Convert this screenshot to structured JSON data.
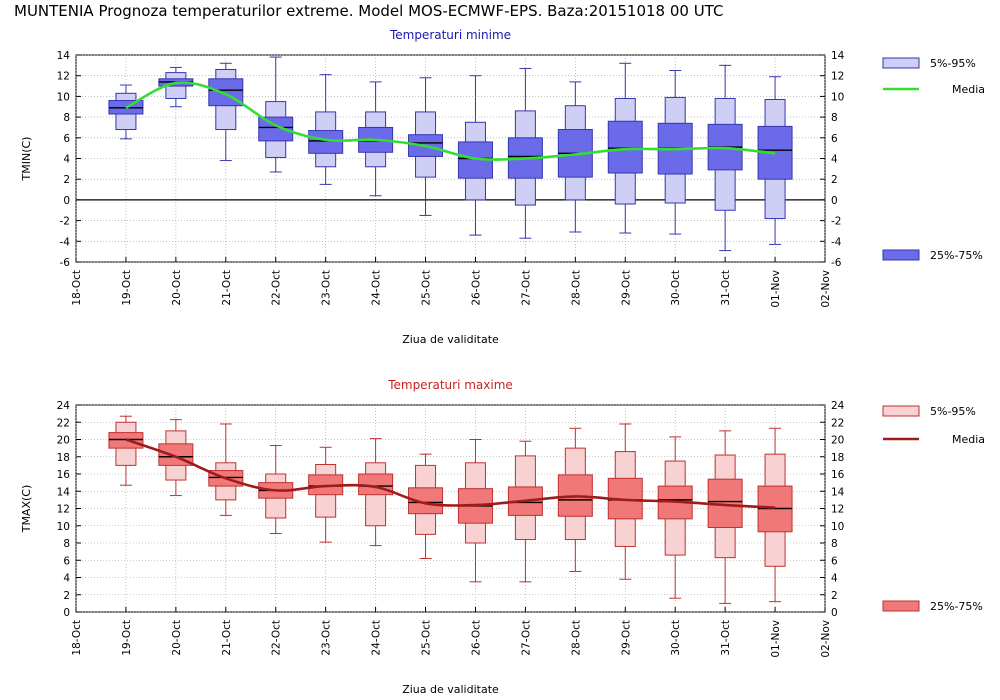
{
  "title": "MUNTENIA  Prognoza temperaturilor extreme.  Model MOS-ECMWF-EPS. Baza:20151018 00 UTC",
  "colors": {
    "min_box_iqr": "#6b6bea",
    "min_box_whisker": "#cfcff6",
    "min_edge": "#3636b0",
    "min_mean": "#33dd33",
    "min_title": "#1a1aa8",
    "max_box_iqr": "#f07878",
    "max_box_whisker": "#f8d2d2",
    "max_edge": "#c03030",
    "max_mean": "#a01c1c",
    "max_title": "#cc2020"
  },
  "chart_data": [
    {
      "type": "box",
      "title": "Temperaturi minime",
      "xlabel": "Ziua de validitate",
      "ylabel": "TMIN(C)",
      "ylim": [
        -6,
        14
      ],
      "yticks": [
        14,
        12,
        10,
        8,
        6,
        4,
        2,
        0,
        -2,
        -4,
        -6
      ],
      "zero_line": true,
      "categories": [
        "18-Oct",
        "19-Oct",
        "20-Oct",
        "21-Oct",
        "22-Oct",
        "23-Oct",
        "24-Oct",
        "25-Oct",
        "26-Oct",
        "27-Oct",
        "28-Oct",
        "29-Oct",
        "30-Oct",
        "31-Oct",
        "01-Nov",
        "02-Nov"
      ],
      "legend": [
        {
          "label": "5%-95%",
          "kind": "range"
        },
        {
          "label": "Media",
          "kind": "mean"
        },
        {
          "label": "25%-75%",
          "kind": "iqr"
        }
      ],
      "series": [
        {
          "category": "19-Oct",
          "min": 5.9,
          "p5": 6.8,
          "q1": 8.3,
          "median": 8.9,
          "q3": 9.6,
          "p95": 10.3,
          "max": 11.1,
          "mean": 8.9
        },
        {
          "category": "20-Oct",
          "min": 9.0,
          "p5": 9.8,
          "q1": 11.0,
          "median": 11.4,
          "q3": 11.7,
          "p95": 12.3,
          "max": 12.8,
          "mean": 11.3
        },
        {
          "category": "21-Oct",
          "min": 3.8,
          "p5": 6.8,
          "q1": 9.1,
          "median": 10.6,
          "q3": 11.7,
          "p95": 12.6,
          "max": 13.2,
          "mean": 10.2
        },
        {
          "category": "22-Oct",
          "min": 2.7,
          "p5": 4.1,
          "q1": 5.7,
          "median": 7.0,
          "q3": 8.0,
          "p95": 9.5,
          "max": 13.8,
          "mean": 7.2
        },
        {
          "category": "23-Oct",
          "min": 1.5,
          "p5": 3.2,
          "q1": 4.5,
          "median": 5.7,
          "q3": 6.7,
          "p95": 8.5,
          "max": 12.1,
          "mean": 5.8
        },
        {
          "category": "24-Oct",
          "min": 0.4,
          "p5": 3.2,
          "q1": 4.6,
          "median": 5.7,
          "q3": 7.0,
          "p95": 8.5,
          "max": 11.4,
          "mean": 5.8
        },
        {
          "category": "25-Oct",
          "min": -1.5,
          "p5": 2.2,
          "q1": 4.2,
          "median": 5.5,
          "q3": 6.3,
          "p95": 8.5,
          "max": 11.8,
          "mean": 5.2
        },
        {
          "category": "26-Oct",
          "min": -3.4,
          "p5": 0.0,
          "q1": 2.1,
          "median": 4.0,
          "q3": 5.6,
          "p95": 7.5,
          "max": 12.0,
          "mean": 4.0
        },
        {
          "category": "27-Oct",
          "min": -3.7,
          "p5": -0.5,
          "q1": 2.1,
          "median": 4.2,
          "q3": 6.0,
          "p95": 8.6,
          "max": 12.7,
          "mean": 4.0
        },
        {
          "category": "28-Oct",
          "min": -3.1,
          "p5": 0.0,
          "q1": 2.2,
          "median": 4.5,
          "q3": 6.8,
          "p95": 9.1,
          "max": 11.4,
          "mean": 4.4
        },
        {
          "category": "29-Oct",
          "min": -3.2,
          "p5": -0.4,
          "q1": 2.6,
          "median": 5.0,
          "q3": 7.6,
          "p95": 9.8,
          "max": 13.2,
          "mean": 4.9
        },
        {
          "category": "30-Oct",
          "min": -3.3,
          "p5": -0.3,
          "q1": 2.5,
          "median": 5.0,
          "q3": 7.4,
          "p95": 9.9,
          "max": 12.5,
          "mean": 4.9
        },
        {
          "category": "31-Oct",
          "min": -4.9,
          "p5": -1.0,
          "q1": 2.9,
          "median": 5.1,
          "q3": 7.3,
          "p95": 9.8,
          "max": 13.0,
          "mean": 5.0
        },
        {
          "category": "01-Nov",
          "min": -4.3,
          "p5": -1.8,
          "q1": 2.0,
          "median": 4.8,
          "q3": 7.1,
          "p95": 9.7,
          "max": 11.9,
          "mean": 4.5
        }
      ]
    },
    {
      "type": "box",
      "title": "Temperaturi maxime",
      "xlabel": "Ziua de validitate",
      "ylabel": "TMAX(C)",
      "ylim": [
        0,
        24
      ],
      "yticks": [
        24,
        22,
        20,
        18,
        16,
        14,
        12,
        10,
        8,
        6,
        4,
        2,
        0
      ],
      "zero_line": false,
      "categories": [
        "18-Oct",
        "19-Oct",
        "20-Oct",
        "21-Oct",
        "22-Oct",
        "23-Oct",
        "24-Oct",
        "25-Oct",
        "26-Oct",
        "27-Oct",
        "28-Oct",
        "29-Oct",
        "30-Oct",
        "31-Oct",
        "01-Nov",
        "02-Nov"
      ],
      "legend": [
        {
          "label": "5%-95%",
          "kind": "range"
        },
        {
          "label": "Media",
          "kind": "mean"
        },
        {
          "label": "25%-75%",
          "kind": "iqr"
        }
      ],
      "series": [
        {
          "category": "19-Oct",
          "min": 14.7,
          "p5": 17.0,
          "q1": 19.0,
          "median": 20.0,
          "q3": 20.8,
          "p95": 22.0,
          "max": 22.7,
          "mean": 20.0
        },
        {
          "category": "20-Oct",
          "min": 13.5,
          "p5": 15.3,
          "q1": 17.0,
          "median": 18.0,
          "q3": 19.5,
          "p95": 21.0,
          "max": 22.3,
          "mean": 18.0
        },
        {
          "category": "21-Oct",
          "min": 11.2,
          "p5": 13.0,
          "q1": 14.6,
          "median": 15.6,
          "q3": 16.4,
          "p95": 17.3,
          "max": 21.8,
          "mean": 15.5
        },
        {
          "category": "22-Oct",
          "min": 9.1,
          "p5": 10.9,
          "q1": 13.2,
          "median": 14.1,
          "q3": 15.0,
          "p95": 16.0,
          "max": 19.3,
          "mean": 14.1
        },
        {
          "category": "23-Oct",
          "min": 8.1,
          "p5": 11.0,
          "q1": 13.6,
          "median": 14.6,
          "q3": 15.9,
          "p95": 17.1,
          "max": 19.1,
          "mean": 14.6
        },
        {
          "category": "24-Oct",
          "min": 7.7,
          "p5": 10.0,
          "q1": 13.6,
          "median": 14.6,
          "q3": 16.0,
          "p95": 17.3,
          "max": 20.1,
          "mean": 14.5
        },
        {
          "category": "25-Oct",
          "min": 6.2,
          "p5": 9.0,
          "q1": 11.4,
          "median": 12.7,
          "q3": 14.4,
          "p95": 17.0,
          "max": 18.3,
          "mean": 12.6
        },
        {
          "category": "26-Oct",
          "min": 3.5,
          "p5": 8.0,
          "q1": 10.3,
          "median": 12.3,
          "q3": 14.3,
          "p95": 17.3,
          "max": 20.0,
          "mean": 12.4
        },
        {
          "category": "27-Oct",
          "min": 3.5,
          "p5": 8.4,
          "q1": 11.2,
          "median": 12.7,
          "q3": 14.5,
          "p95": 18.1,
          "max": 19.8,
          "mean": 12.9
        },
        {
          "category": "28-Oct",
          "min": 4.7,
          "p5": 8.4,
          "q1": 11.1,
          "median": 13.0,
          "q3": 15.9,
          "p95": 19.0,
          "max": 21.3,
          "mean": 13.4
        },
        {
          "category": "29-Oct",
          "min": 3.8,
          "p5": 7.6,
          "q1": 10.8,
          "median": 13.0,
          "q3": 15.5,
          "p95": 18.6,
          "max": 21.8,
          "mean": 13.0
        },
        {
          "category": "30-Oct",
          "min": 1.6,
          "p5": 6.6,
          "q1": 10.8,
          "median": 13.0,
          "q3": 14.6,
          "p95": 17.5,
          "max": 20.3,
          "mean": 12.8
        },
        {
          "category": "31-Oct",
          "min": 1.0,
          "p5": 6.3,
          "q1": 9.8,
          "median": 12.8,
          "q3": 15.4,
          "p95": 18.2,
          "max": 21.0,
          "mean": 12.4
        },
        {
          "category": "01-Nov",
          "min": 1.2,
          "p5": 5.3,
          "q1": 9.3,
          "median": 12.0,
          "q3": 14.6,
          "p95": 18.3,
          "max": 21.3,
          "mean": 12.1
        }
      ]
    }
  ]
}
